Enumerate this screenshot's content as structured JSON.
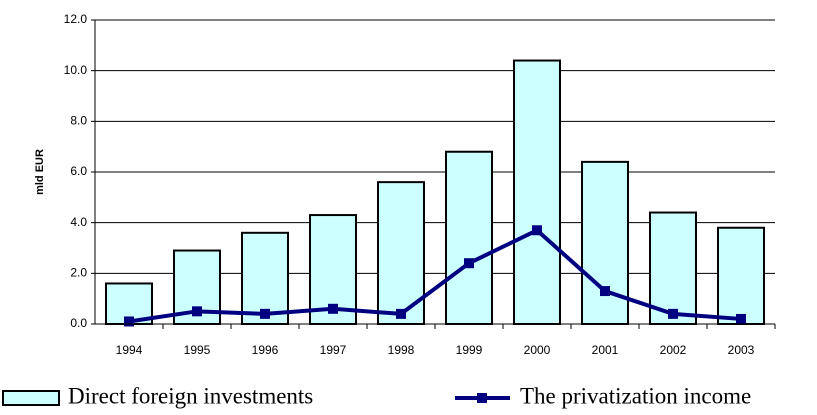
{
  "chart_data": {
    "type": "bar_line",
    "y_label": "mld EUR",
    "categories": [
      "1994",
      "1995",
      "1996",
      "1997",
      "1998",
      "1999",
      "2000",
      "2001",
      "2002",
      "2003"
    ],
    "series": [
      {
        "name": "Direct foreign investments",
        "type": "bar",
        "color": "#ccffff",
        "values": [
          1.6,
          2.9,
          3.6,
          4.3,
          5.6,
          6.8,
          10.4,
          6.4,
          4.4,
          3.8
        ]
      },
      {
        "name": "The privatization income",
        "type": "line",
        "color": "#000080",
        "values": [
          0.1,
          0.5,
          0.4,
          0.6,
          0.4,
          2.4,
          3.7,
          1.3,
          0.4,
          0.2
        ]
      }
    ],
    "ylim": [
      0,
      12
    ],
    "yticks": [
      {
        "value": 0,
        "label": "0.0"
      },
      {
        "value": 2,
        "label": "2.0"
      },
      {
        "value": 4,
        "label": "4.0"
      },
      {
        "value": 6,
        "label": "6.0"
      },
      {
        "value": 8,
        "label": "8.0"
      },
      {
        "value": 10,
        "label": "10.0"
      },
      {
        "value": 12,
        "label": "12.0"
      }
    ],
    "grid": true
  }
}
